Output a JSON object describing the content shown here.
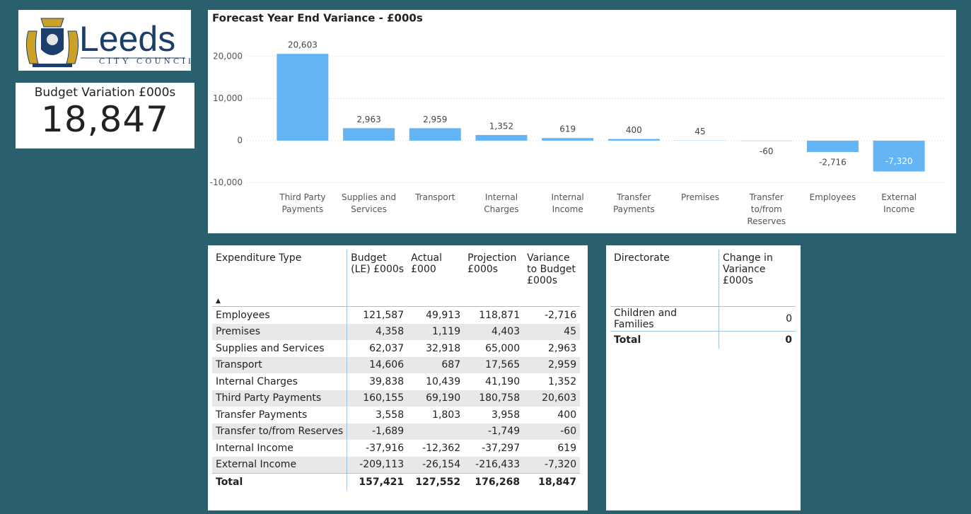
{
  "logo": {
    "name": "Leeds",
    "subtitle": "CITY COUNCIL"
  },
  "kpi": {
    "title": "Budget Variation £000s",
    "value": "18,847"
  },
  "chart_data": {
    "type": "bar",
    "title": "Forecast Year End Variance - £000s",
    "categories": [
      "Third Party Payments",
      "Supplies and Services",
      "Transport",
      "Internal Charges",
      "Internal Income",
      "Transfer Payments",
      "Premises",
      "Transfer to/from Reserves",
      "Employees",
      "External Income"
    ],
    "values": [
      20603,
      2963,
      2959,
      1352,
      619,
      400,
      45,
      -60,
      -2716,
      -7320
    ],
    "value_labels": [
      "20,603",
      "2,963",
      "2,959",
      "1,352",
      "619",
      "400",
      "45",
      "-60",
      "-2,716",
      "-7,320"
    ],
    "color": "#64b5f6",
    "ylim": [
      -10000,
      25000
    ],
    "yticks": [
      {
        "value": -10000,
        "label": "-10,000"
      },
      0,
      {
        "value": 10000,
        "label": "10,000"
      },
      {
        "value": 20000,
        "label": "20,000"
      }
    ],
    "grid": true
  },
  "expenditure_table": {
    "headers": [
      "Expenditure Type",
      "Budget (LE) £000s",
      "Actual £000",
      "Projection £000s",
      "Variance to Budget £000s"
    ],
    "rows": [
      [
        "Employees",
        "121,587",
        "49,913",
        "118,871",
        "-2,716"
      ],
      [
        "Premises",
        "4,358",
        "1,119",
        "4,403",
        "45"
      ],
      [
        "Supplies and Services",
        "62,037",
        "32,918",
        "65,000",
        "2,963"
      ],
      [
        "Transport",
        "14,606",
        "687",
        "17,565",
        "2,959"
      ],
      [
        "Internal Charges",
        "39,838",
        "10,439",
        "41,190",
        "1,352"
      ],
      [
        "Third Party Payments",
        "160,155",
        "69,190",
        "180,758",
        "20,603"
      ],
      [
        "Transfer Payments",
        "3,558",
        "1,803",
        "3,958",
        "400"
      ],
      [
        "Transfer to/from Reserves",
        "-1,689",
        null,
        "-1,749",
        "-60"
      ],
      [
        "Internal Income",
        "-37,916",
        "-12,362",
        "-37,297",
        "619"
      ],
      [
        "External Income",
        "-209,113",
        "-26,154",
        "-216,433",
        "-7,320"
      ]
    ],
    "total": [
      "Total",
      "157,421",
      "127,552",
      "176,268",
      "18,847"
    ]
  },
  "directorate_table": {
    "headers": [
      "Directorate",
      "Change in Variance £000s"
    ],
    "rows": [
      [
        "Children and Families",
        "0"
      ]
    ],
    "total": [
      "Total",
      "0"
    ]
  }
}
